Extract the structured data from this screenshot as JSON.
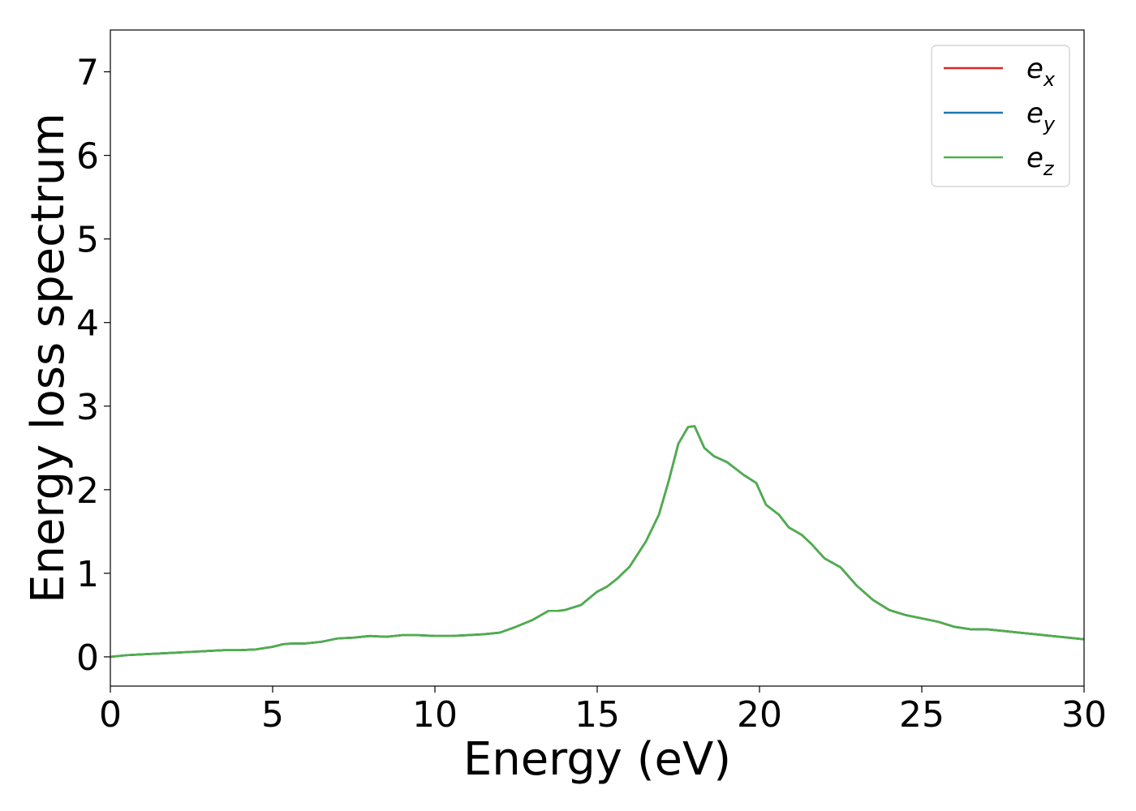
{
  "chart_data": {
    "type": "line",
    "title": "",
    "xlabel": "Energy (eV)",
    "ylabel": "Energy loss spectrum",
    "xlim": [
      0,
      30
    ],
    "ylim": [
      -0.35,
      7.5
    ],
    "x_ticks": [
      0,
      5,
      10,
      15,
      20,
      25,
      30
    ],
    "y_ticks": [
      0,
      1,
      2,
      3,
      4,
      5,
      6,
      7
    ],
    "grid": false,
    "legend_position": "top-right",
    "legend": [
      {
        "base": "e",
        "sub": "x",
        "color": "#d62728"
      },
      {
        "base": "e",
        "sub": "y",
        "color": "#1f77b4"
      },
      {
        "base": "e",
        "sub": "z",
        "color": "#4daf4a"
      }
    ],
    "x": [
      0,
      0.5,
      1,
      1.5,
      2,
      2.5,
      3,
      3.5,
      4,
      4.5,
      5,
      5.3,
      5.6,
      6,
      6.5,
      7,
      7.5,
      8,
      8.5,
      9,
      9.5,
      10,
      10.5,
      11,
      11.5,
      12,
      12.5,
      13,
      13.5,
      13.8,
      14,
      14.5,
      15,
      15.3,
      15.6,
      16,
      16.5,
      16.9,
      17.2,
      17.5,
      17.8,
      18,
      18.3,
      18.6,
      19,
      19.5,
      19.9,
      20.2,
      20.6,
      20.9,
      21.3,
      21.6,
      22,
      22.5,
      23,
      23.5,
      24,
      24.5,
      25,
      25.5,
      26,
      26.5,
      27,
      27.5,
      28,
      28.5,
      29,
      29.5,
      30
    ],
    "series": [
      {
        "name": "e_x",
        "color": "#d62728",
        "values": [
          0.0,
          0.02,
          0.03,
          0.04,
          0.05,
          0.06,
          0.07,
          0.08,
          0.08,
          0.09,
          0.12,
          0.15,
          0.16,
          0.16,
          0.18,
          0.22,
          0.23,
          0.25,
          0.24,
          0.26,
          0.26,
          0.25,
          0.25,
          0.26,
          0.27,
          0.29,
          0.36,
          0.44,
          0.55,
          0.55,
          0.56,
          0.62,
          0.78,
          0.84,
          0.93,
          1.08,
          1.38,
          1.7,
          2.1,
          2.55,
          2.75,
          2.76,
          2.5,
          2.4,
          2.33,
          2.18,
          2.08,
          1.82,
          1.7,
          1.55,
          1.46,
          1.35,
          1.18,
          1.07,
          0.85,
          0.68,
          0.56,
          0.5,
          0.46,
          0.42,
          0.36,
          0.33,
          0.33,
          0.31,
          0.29,
          0.27,
          0.25,
          0.23,
          0.21
        ]
      },
      {
        "name": "e_y",
        "color": "#1f77b4",
        "values": [
          0.0,
          0.02,
          0.03,
          0.04,
          0.05,
          0.06,
          0.07,
          0.08,
          0.08,
          0.09,
          0.12,
          0.15,
          0.16,
          0.16,
          0.18,
          0.22,
          0.23,
          0.25,
          0.24,
          0.26,
          0.26,
          0.25,
          0.25,
          0.26,
          0.27,
          0.29,
          0.36,
          0.44,
          0.55,
          0.55,
          0.56,
          0.62,
          0.78,
          0.84,
          0.93,
          1.08,
          1.38,
          1.7,
          2.1,
          2.55,
          2.75,
          2.76,
          2.5,
          2.4,
          2.33,
          2.18,
          2.08,
          1.82,
          1.7,
          1.55,
          1.46,
          1.35,
          1.18,
          1.07,
          0.85,
          0.68,
          0.56,
          0.5,
          0.46,
          0.42,
          0.36,
          0.33,
          0.33,
          0.31,
          0.29,
          0.27,
          0.25,
          0.23,
          0.21
        ]
      },
      {
        "name": "e_z",
        "color": "#4daf4a",
        "values": [
          0.0,
          0.02,
          0.03,
          0.04,
          0.05,
          0.06,
          0.07,
          0.08,
          0.08,
          0.09,
          0.12,
          0.15,
          0.16,
          0.16,
          0.18,
          0.22,
          0.23,
          0.25,
          0.24,
          0.26,
          0.26,
          0.25,
          0.25,
          0.26,
          0.27,
          0.29,
          0.36,
          0.44,
          0.55,
          0.55,
          0.56,
          0.62,
          0.78,
          0.84,
          0.93,
          1.08,
          1.38,
          1.7,
          2.1,
          2.55,
          2.75,
          2.76,
          2.5,
          2.4,
          2.33,
          2.18,
          2.08,
          1.82,
          1.7,
          1.55,
          1.46,
          1.35,
          1.18,
          1.07,
          0.85,
          0.68,
          0.56,
          0.5,
          0.46,
          0.42,
          0.36,
          0.33,
          0.33,
          0.31,
          0.29,
          0.27,
          0.25,
          0.23,
          0.21
        ]
      }
    ]
  }
}
